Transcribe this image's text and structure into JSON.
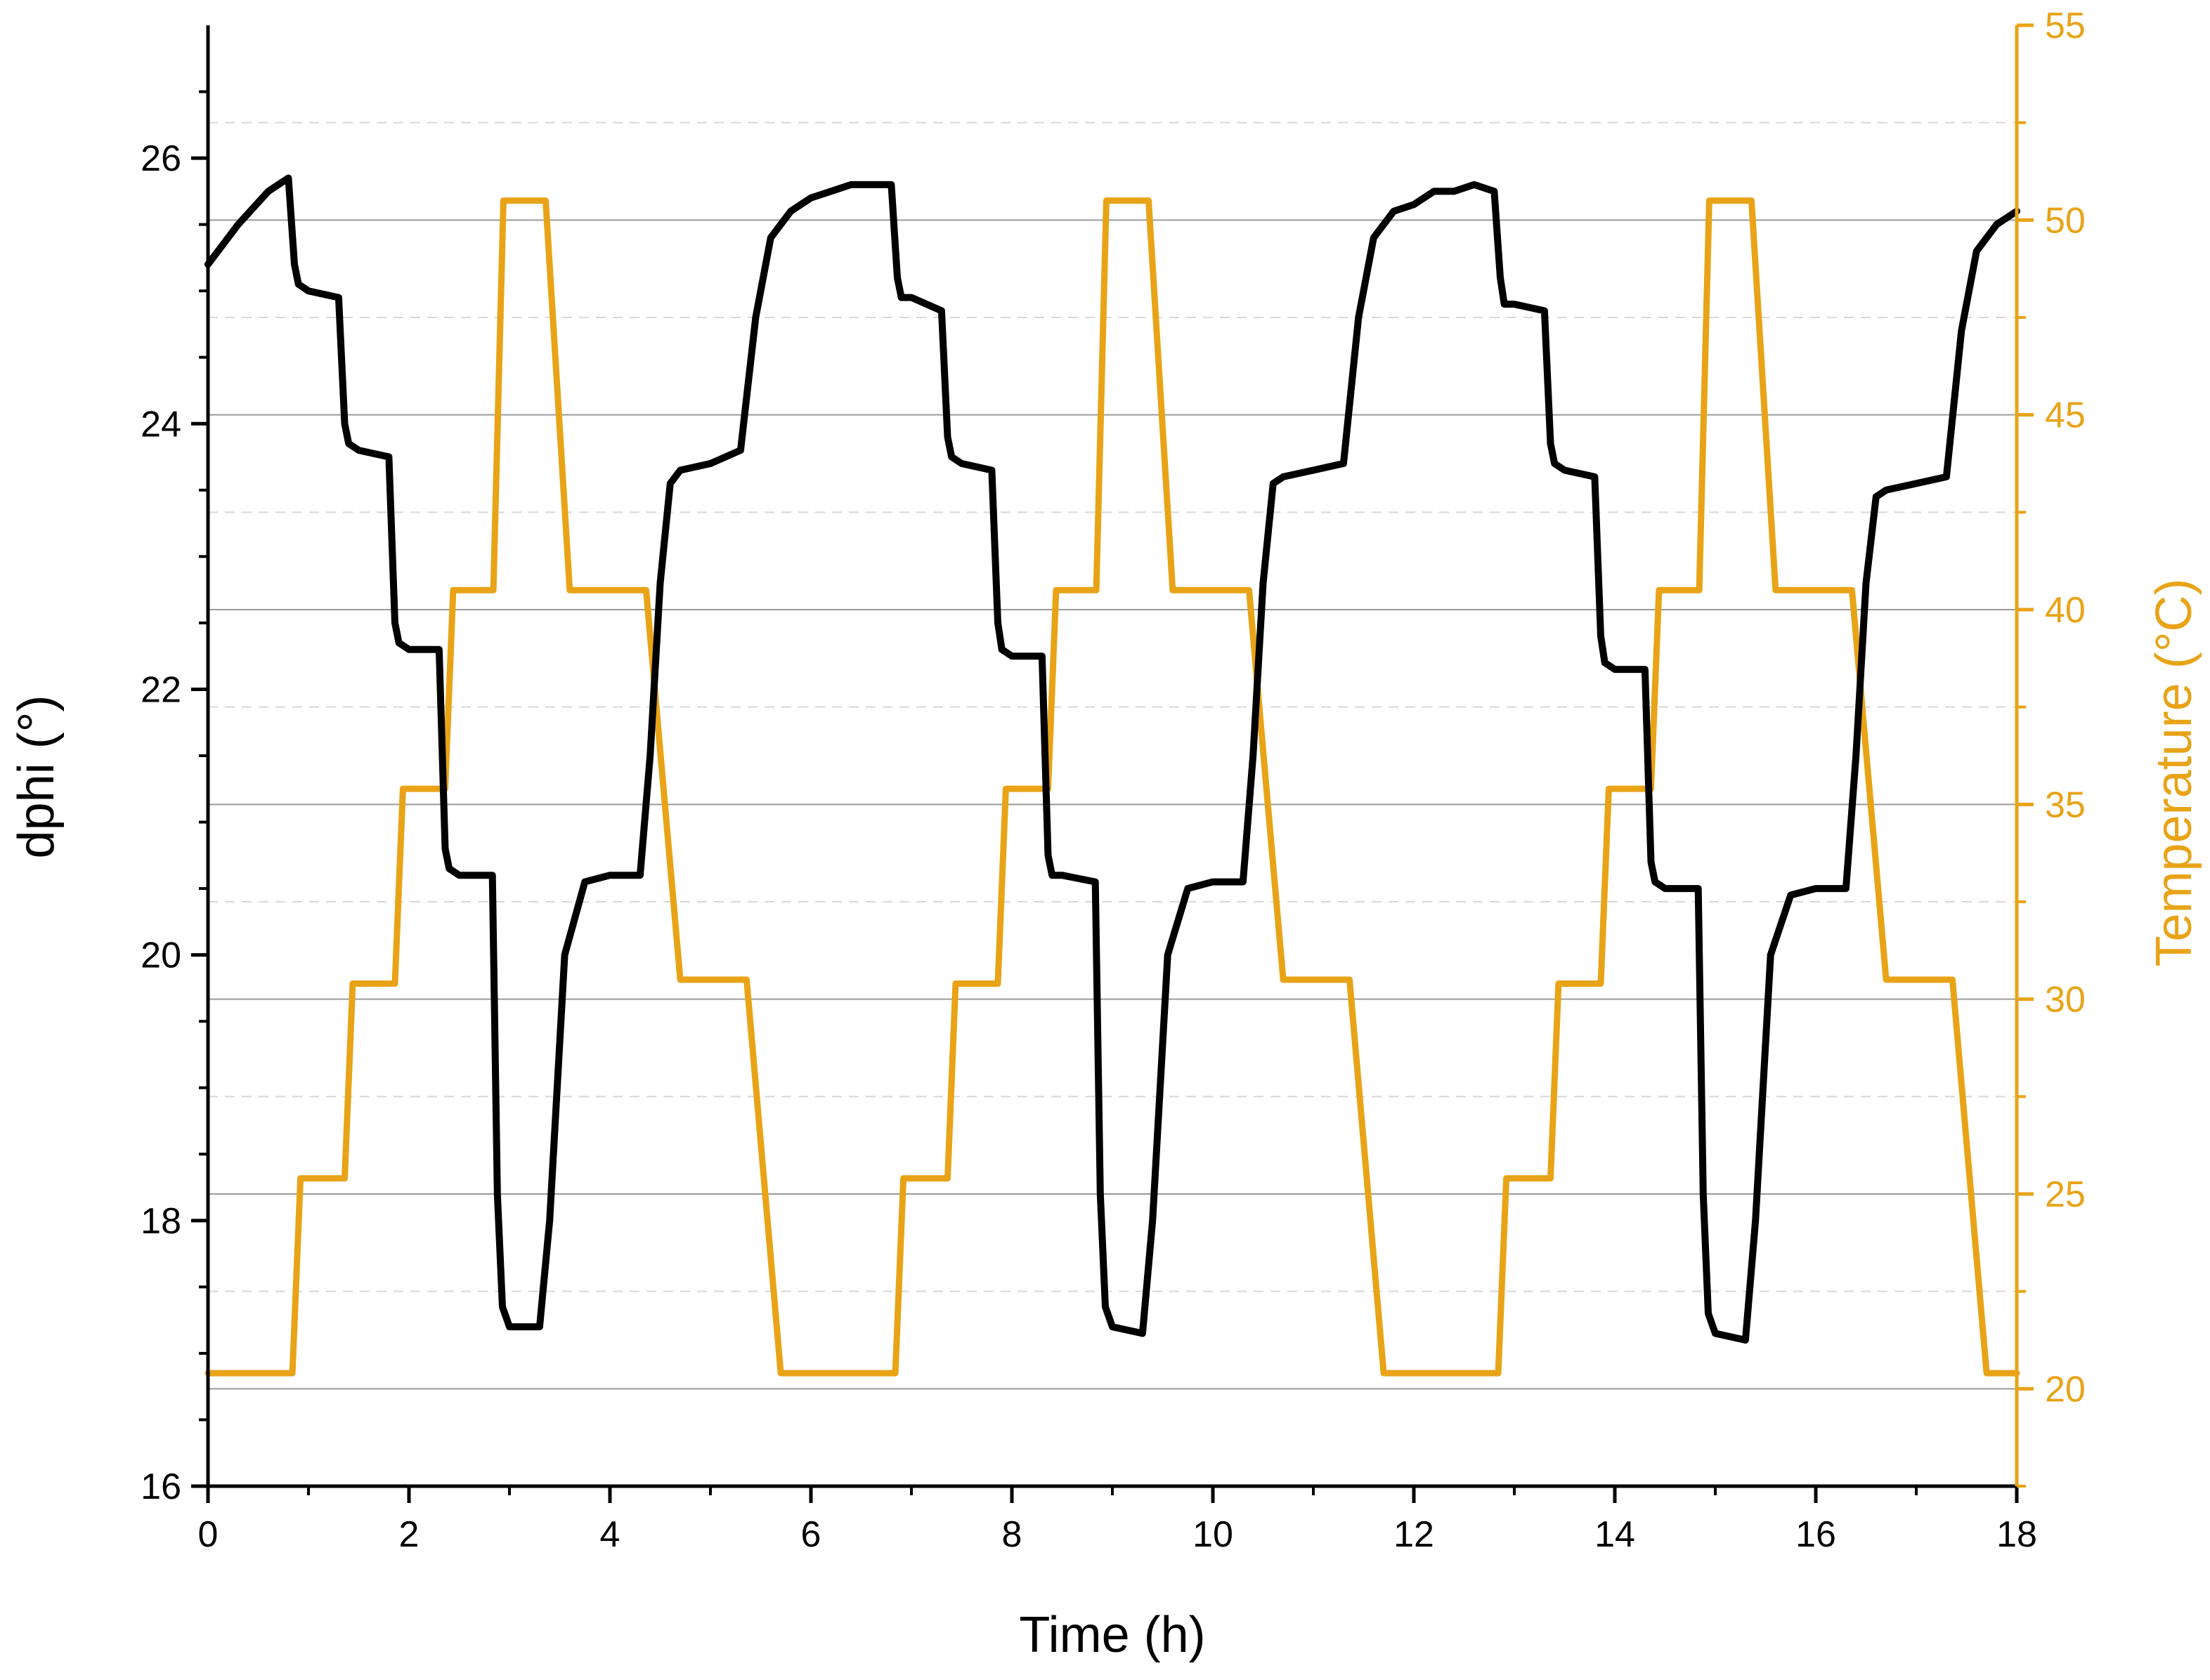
{
  "chart_data": {
    "type": "line",
    "title": "",
    "xlabel": "Time (h)",
    "ylabel": "dphi (°)",
    "y2label": "Temperature (°C)",
    "xlim": [
      0,
      18
    ],
    "ylim": [
      16,
      27
    ],
    "y2lim": [
      17.5,
      55
    ],
    "xticks": [
      0,
      2,
      4,
      6,
      8,
      10,
      12,
      14,
      16,
      18
    ],
    "yticks": [
      16,
      18,
      20,
      22,
      24,
      26
    ],
    "y2ticks": [
      20,
      25,
      30,
      35,
      40,
      45,
      50,
      55
    ],
    "colors": {
      "dphi": "#000000",
      "temperature": "#E8A317",
      "grid": "#9a9a9a"
    },
    "series": [
      {
        "name": "dphi",
        "axis": "left",
        "x": [
          0,
          0.3,
          0.6,
          0.8,
          0.86,
          0.9,
          1.0,
          1.3,
          1.36,
          1.4,
          1.5,
          1.8,
          1.86,
          1.9,
          2.0,
          2.3,
          2.36,
          2.4,
          2.5,
          2.83,
          2.88,
          2.93,
          3.0,
          3.3,
          3.4,
          3.55,
          3.75,
          4.0,
          4.3,
          4.4,
          4.5,
          4.6,
          4.7,
          5.0,
          5.3,
          5.45,
          5.6,
          5.8,
          6.0,
          6.2,
          6.4,
          6.6,
          6.8,
          6.86,
          6.9,
          7.0,
          7.3,
          7.36,
          7.4,
          7.5,
          7.8,
          7.86,
          7.9,
          8.0,
          8.3,
          8.36,
          8.4,
          8.5,
          8.83,
          8.88,
          8.93,
          9.0,
          9.3,
          9.4,
          9.55,
          9.75,
          10.0,
          10.3,
          10.4,
          10.5,
          10.6,
          10.7,
          11.0,
          11.3,
          11.45,
          11.6,
          11.8,
          12.0,
          12.2,
          12.4,
          12.6,
          12.8,
          12.86,
          12.9,
          13.0,
          13.3,
          13.36,
          13.4,
          13.5,
          13.8,
          13.86,
          13.9,
          14.0,
          14.3,
          14.36,
          14.4,
          14.5,
          14.83,
          14.88,
          14.93,
          15.0,
          15.3,
          15.4,
          15.55,
          15.75,
          16.0,
          16.3,
          16.4,
          16.5,
          16.6,
          16.7,
          17.0,
          17.3,
          17.45,
          17.6,
          17.8,
          18.0
        ],
        "values": [
          25.2,
          25.5,
          25.75,
          25.85,
          25.2,
          25.05,
          25.0,
          24.95,
          24.0,
          23.85,
          23.8,
          23.75,
          22.5,
          22.35,
          22.3,
          22.3,
          20.8,
          20.65,
          20.6,
          20.6,
          18.2,
          17.35,
          17.2,
          17.2,
          18.0,
          20.0,
          20.55,
          20.6,
          20.6,
          21.5,
          22.8,
          23.55,
          23.65,
          23.7,
          23.8,
          24.8,
          25.4,
          25.6,
          25.7,
          25.75,
          25.8,
          25.8,
          25.8,
          25.1,
          24.95,
          24.95,
          24.85,
          23.9,
          23.75,
          23.7,
          23.65,
          22.5,
          22.3,
          22.25,
          22.25,
          20.75,
          20.6,
          20.6,
          20.55,
          18.2,
          17.35,
          17.2,
          17.15,
          18.0,
          20.0,
          20.5,
          20.55,
          20.55,
          21.5,
          22.8,
          23.55,
          23.6,
          23.65,
          23.7,
          24.8,
          25.4,
          25.6,
          25.65,
          25.75,
          25.75,
          25.8,
          25.75,
          25.1,
          24.9,
          24.9,
          24.85,
          23.85,
          23.7,
          23.65,
          23.6,
          22.4,
          22.2,
          22.15,
          22.15,
          20.7,
          20.55,
          20.5,
          20.5,
          18.2,
          17.3,
          17.15,
          17.1,
          18.0,
          20.0,
          20.45,
          20.5,
          20.5,
          21.5,
          22.8,
          23.45,
          23.5,
          23.55,
          23.6,
          24.7,
          25.3,
          25.5,
          25.6
        ]
      },
      {
        "name": "Temperature",
        "axis": "right",
        "x": [
          0,
          0.84,
          0.92,
          1.36,
          1.44,
          1.86,
          1.94,
          2.36,
          2.44,
          2.84,
          2.94,
          3.36,
          3.6,
          4.36,
          4.7,
          5.36,
          5.7,
          6.84,
          6.92,
          7.36,
          7.44,
          7.86,
          7.94,
          8.36,
          8.44,
          8.84,
          8.94,
          9.36,
          9.6,
          10.36,
          10.7,
          11.36,
          11.7,
          12.84,
          12.92,
          13.36,
          13.44,
          13.86,
          13.94,
          14.36,
          14.44,
          14.84,
          14.94,
          15.36,
          15.6,
          16.36,
          16.7,
          17.36,
          17.7,
          18.0
        ],
        "values": [
          20.4,
          20.4,
          25.4,
          25.4,
          30.4,
          30.4,
          35.4,
          35.4,
          40.5,
          40.5,
          50.5,
          50.5,
          40.5,
          40.5,
          30.5,
          30.5,
          20.4,
          20.4,
          25.4,
          25.4,
          30.4,
          30.4,
          35.4,
          35.4,
          40.5,
          40.5,
          50.5,
          50.5,
          40.5,
          40.5,
          30.5,
          30.5,
          20.4,
          20.4,
          25.4,
          25.4,
          30.4,
          30.4,
          35.4,
          35.4,
          40.5,
          40.5,
          50.5,
          50.5,
          40.5,
          40.5,
          30.5,
          30.5,
          20.4,
          20.4
        ]
      }
    ],
    "grid": true,
    "legend": "none"
  }
}
